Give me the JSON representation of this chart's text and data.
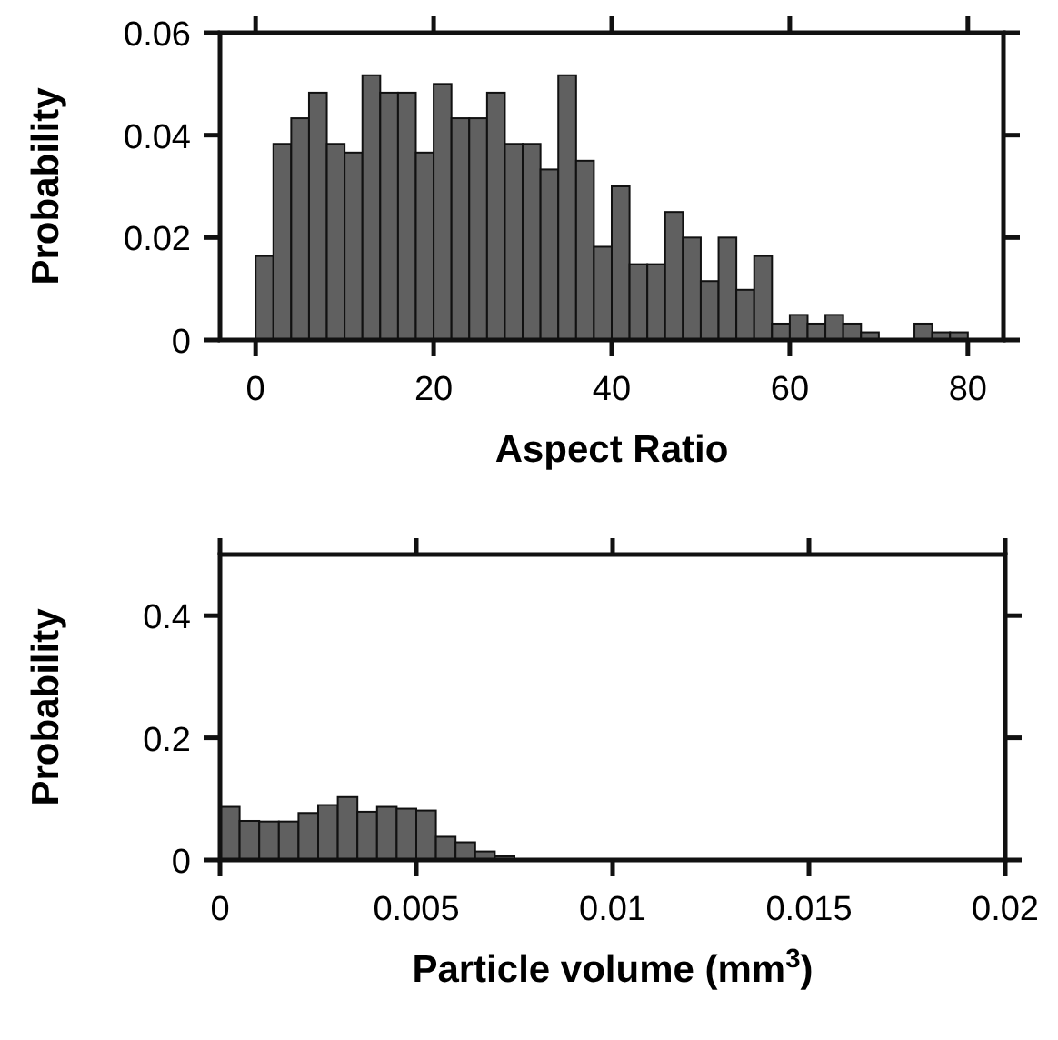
{
  "chart_data": [
    {
      "type": "histogram",
      "xlabel": "Aspect Ratio",
      "ylabel": "Probability",
      "color": "#606060",
      "bins": [
        0,
        2,
        4,
        6,
        8,
        10,
        12,
        14,
        16,
        18,
        20,
        22,
        24,
        26,
        28,
        30,
        32,
        34,
        36,
        38,
        40,
        42,
        44,
        46,
        48,
        50,
        52,
        54,
        56,
        58,
        60,
        62,
        64,
        66,
        68,
        70,
        72,
        74,
        76,
        78,
        80
      ],
      "values": [
        0.0164,
        0.0383,
        0.0433,
        0.0483,
        0.0383,
        0.0366,
        0.0517,
        0.0483,
        0.0483,
        0.0366,
        0.05,
        0.0433,
        0.0433,
        0.0483,
        0.0383,
        0.0383,
        0.0333,
        0.0517,
        0.035,
        0.0182,
        0.03,
        0.0148,
        0.0148,
        0.025,
        0.02,
        0.0115,
        0.02,
        0.0098,
        0.0164,
        0.0032,
        0.0049,
        0.0032,
        0.0049,
        0.0032,
        0.0015,
        0,
        0,
        0.0032,
        0.0015,
        0.0015
      ],
      "xlim": [
        -4,
        84
      ],
      "xticks": [
        0,
        20,
        40,
        60,
        80
      ],
      "ylim": [
        0,
        0.06
      ],
      "yticks": [
        0,
        0.02,
        0.04,
        0.06
      ],
      "grid": false
    },
    {
      "type": "histogram",
      "xlabel": "Particle volume (mm$^{3}$)",
      "ylabel": "Probability",
      "color": "#606060",
      "bins": [
        0,
        0.0005,
        0.001,
        0.0015,
        0.002,
        0.0025,
        0.003,
        0.0035,
        0.004,
        0.0045,
        0.005,
        0.0055,
        0.006,
        0.0065,
        0.007,
        0.0075
      ],
      "values": [
        0.087,
        0.064,
        0.063,
        0.063,
        0.077,
        0.09,
        0.103,
        0.079,
        0.087,
        0.084,
        0.081,
        0.038,
        0.029,
        0.014,
        0.006
      ],
      "xlim": [
        0,
        0.02
      ],
      "xticks": [
        0,
        0.005,
        0.01,
        0.015,
        0.02
      ],
      "ylim": [
        0,
        0.5
      ],
      "yticks": [
        0,
        0.2,
        0.4
      ],
      "grid": false
    }
  ]
}
